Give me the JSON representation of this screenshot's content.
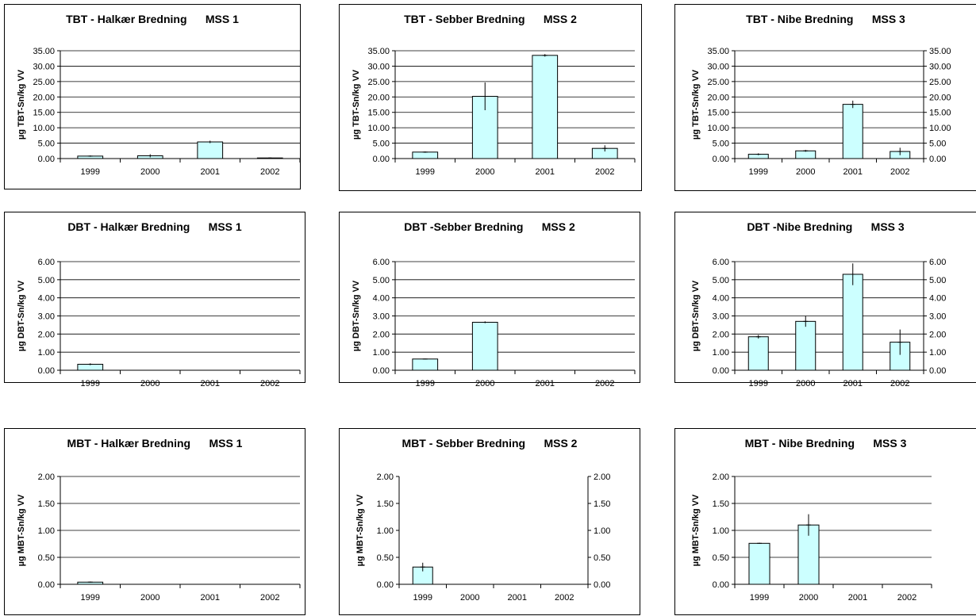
{
  "colors": {
    "bar_fill": "#ccffff",
    "bar_stroke": "#000000",
    "grid": "#000000"
  },
  "chart_data": [
    {
      "type": "bar",
      "title": "TBT - Halkær Bredning",
      "station": "MSS 1",
      "ylabel": "µg TBT-Sn/kg VV",
      "categories": [
        "1999",
        "2000",
        "2001",
        "2002"
      ],
      "values": [
        0.8,
        0.9,
        5.4,
        0.2
      ],
      "errors": [
        0.2,
        0.5,
        0.4,
        0.0
      ],
      "ylim": [
        0,
        35
      ],
      "yticks": [
        "0.00",
        "5.00",
        "10.00",
        "15.00",
        "20.00",
        "25.00",
        "30.00",
        "35.00"
      ],
      "ytick_values": [
        0,
        5,
        10,
        15,
        20,
        25,
        30,
        35
      ],
      "right_axis": false,
      "grid": true,
      "legend": "none"
    },
    {
      "type": "bar",
      "title": "TBT - Sebber Bredning",
      "station": "MSS 2",
      "ylabel": "µg TBT-Sn/kg VV",
      "categories": [
        "1999",
        "2000",
        "2001",
        "2002"
      ],
      "values": [
        2.1,
        20.2,
        33.5,
        3.3
      ],
      "errors": [
        0.2,
        4.5,
        0.4,
        1.0
      ],
      "ylim": [
        0,
        35
      ],
      "yticks": [
        "0.00",
        "5.00",
        "10.00",
        "15.00",
        "20.00",
        "25.00",
        "30.00",
        "35.00"
      ],
      "ytick_values": [
        0,
        5,
        10,
        15,
        20,
        25,
        30,
        35
      ],
      "right_axis": false,
      "grid": true,
      "legend": "none"
    },
    {
      "type": "bar",
      "title": "TBT - Nibe Bredning",
      "station": "MSS 3",
      "ylabel": "µg TBT-Sn/kg VV",
      "categories": [
        "1999",
        "2000",
        "2001",
        "2002"
      ],
      "values": [
        1.4,
        2.5,
        17.6,
        2.3
      ],
      "errors": [
        0.3,
        0.3,
        1.2,
        1.2
      ],
      "ylim": [
        0,
        35
      ],
      "yticks": [
        "0.00",
        "5.00",
        "10.00",
        "15.00",
        "20.00",
        "25.00",
        "30.00",
        "35.00"
      ],
      "ytick_values": [
        0,
        5,
        10,
        15,
        20,
        25,
        30,
        35
      ],
      "right_axis": true,
      "grid": true,
      "legend": "none"
    },
    {
      "type": "bar",
      "title": "DBT - Halkær Bredning",
      "station": "MSS 1",
      "ylabel": "µg DBT-Sn/kg VV",
      "categories": [
        "1999",
        "2000",
        "2001",
        "2002"
      ],
      "values": [
        0.33,
        0.0,
        0.0,
        0.0
      ],
      "errors": [
        0.05,
        0.0,
        0.0,
        0.0
      ],
      "ylim": [
        0,
        6
      ],
      "yticks": [
        "0.00",
        "1.00",
        "2.00",
        "3.00",
        "4.00",
        "5.00",
        "6.00"
      ],
      "ytick_values": [
        0,
        1,
        2,
        3,
        4,
        5,
        6
      ],
      "right_axis": false,
      "grid": true,
      "legend": "none"
    },
    {
      "type": "bar",
      "title": "DBT -Sebber Bredning",
      "station": "MSS 2",
      "ylabel": "µg DBT-Sn/kg VV",
      "categories": [
        "1999",
        "2000",
        "2001",
        "2002"
      ],
      "values": [
        0.62,
        2.65,
        0.0,
        0.0
      ],
      "errors": [
        0.02,
        0.05,
        0.0,
        0.0
      ],
      "ylim": [
        0,
        6
      ],
      "yticks": [
        "0.00",
        "1.00",
        "2.00",
        "3.00",
        "4.00",
        "5.00",
        "6.00"
      ],
      "ytick_values": [
        0,
        1,
        2,
        3,
        4,
        5,
        6
      ],
      "right_axis": false,
      "grid": true,
      "legend": "none"
    },
    {
      "type": "bar",
      "title": "DBT -Nibe Bredning",
      "station": "MSS 3",
      "ylabel": "µg DBT-Sn/kg VV",
      "categories": [
        "1999",
        "2000",
        "2001",
        "2002"
      ],
      "values": [
        1.85,
        2.7,
        5.3,
        1.55
      ],
      "errors": [
        0.1,
        0.3,
        0.6,
        0.7
      ],
      "ylim": [
        0,
        6
      ],
      "yticks": [
        "0.00",
        "1.00",
        "2.00",
        "3.00",
        "4.00",
        "5.00",
        "6.00"
      ],
      "ytick_values": [
        0,
        1,
        2,
        3,
        4,
        5,
        6
      ],
      "right_axis": true,
      "grid": true,
      "legend": "none"
    },
    {
      "type": "bar",
      "title": "MBT - Halkær Bredning",
      "station": "MSS 1",
      "ylabel": "µg MBT-Sn/kg VV",
      "categories": [
        "1999",
        "2000",
        "2001",
        "2002"
      ],
      "values": [
        0.04,
        0.0,
        0.0,
        0.0
      ],
      "errors": [
        0.01,
        0.0,
        0.0,
        0.0
      ],
      "ylim": [
        0,
        2
      ],
      "yticks": [
        "0.00",
        "0.50",
        "1.00",
        "1.50",
        "2.00"
      ],
      "ytick_values": [
        0,
        0.5,
        1,
        1.5,
        2
      ],
      "right_axis": false,
      "grid": true,
      "legend": "none"
    },
    {
      "type": "bar",
      "title": "MBT - Sebber Bredning",
      "station": "MSS 2",
      "ylabel": "µg MBT-Sn/kg VV",
      "categories": [
        "1999",
        "2000",
        "2001",
        "2002"
      ],
      "values": [
        0.32,
        0.0,
        0.0,
        0.0
      ],
      "errors": [
        0.08,
        0.0,
        0.0,
        0.0
      ],
      "ylim": [
        0,
        2
      ],
      "yticks": [
        "0.00",
        "0.50",
        "1.00",
        "1.50",
        "2.00"
      ],
      "ytick_values": [
        0,
        0.5,
        1,
        1.5,
        2
      ],
      "right_axis": true,
      "grid": false,
      "legend": "none"
    },
    {
      "type": "bar",
      "title": "MBT - Nibe Bredning",
      "station": "MSS 3",
      "ylabel": "µg MBT-Sn/kg VV",
      "categories": [
        "1999",
        "2000",
        "2001",
        "2002"
      ],
      "values": [
        0.76,
        1.1,
        0.0,
        0.0
      ],
      "errors": [
        0.01,
        0.2,
        0.0,
        0.0
      ],
      "ylim": [
        0,
        2
      ],
      "yticks": [
        "0.00",
        "0.50",
        "1.00",
        "1.50",
        "2.00"
      ],
      "ytick_values": [
        0,
        0.5,
        1,
        1.5,
        2
      ],
      "right_axis": false,
      "grid": true,
      "legend": "none"
    }
  ]
}
